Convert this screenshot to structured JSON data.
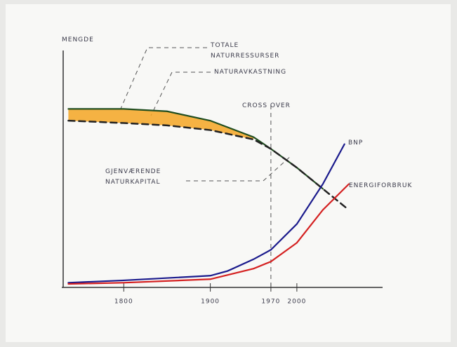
{
  "chart_data": {
    "type": "line",
    "y_label": "MENGDE",
    "xlim": [
      1730,
      2095
    ],
    "ylim": [
      0,
      100
    ],
    "xticks": [
      1800,
      1900,
      1970,
      2000
    ],
    "annotations": [
      "NATURAVKASTNING",
      "CROSS OVER"
    ],
    "series": [
      {
        "name": "TOTALE NATURRESSURSER",
        "color": "#1f4d1f",
        "style": "solid",
        "x": [
          1736,
          1800,
          1850,
          1900,
          1950,
          1970,
          2000,
          2030
        ],
        "values": [
          76,
          76,
          75,
          71,
          64,
          59,
          51,
          42
        ]
      },
      {
        "name": "GJENVÆRENDE NATURKAPITAL",
        "color": "#222222",
        "style": "dashed",
        "x": [
          1736,
          1800,
          1850,
          1900,
          1950,
          1970,
          2000,
          2030,
          2060
        ],
        "values": [
          71,
          70,
          69,
          67,
          63,
          59,
          51,
          42,
          33
        ]
      },
      {
        "name": "BNP",
        "color": "#1a1a8c",
        "style": "solid",
        "x": [
          1736,
          1800,
          1900,
          1920,
          1950,
          1970,
          2000,
          2030,
          2055
        ],
        "values": [
          2,
          3,
          5,
          7,
          12,
          16,
          27,
          44,
          61
        ]
      },
      {
        "name": "ENERGIFORBRUK",
        "color": "#d42020",
        "style": "solid",
        "x": [
          1736,
          1800,
          1900,
          1950,
          1970,
          2000,
          2030,
          2060
        ],
        "values": [
          1.5,
          2,
          3.5,
          8,
          11,
          19,
          33,
          44
        ]
      }
    ],
    "gap_color": "#f5a623"
  }
}
